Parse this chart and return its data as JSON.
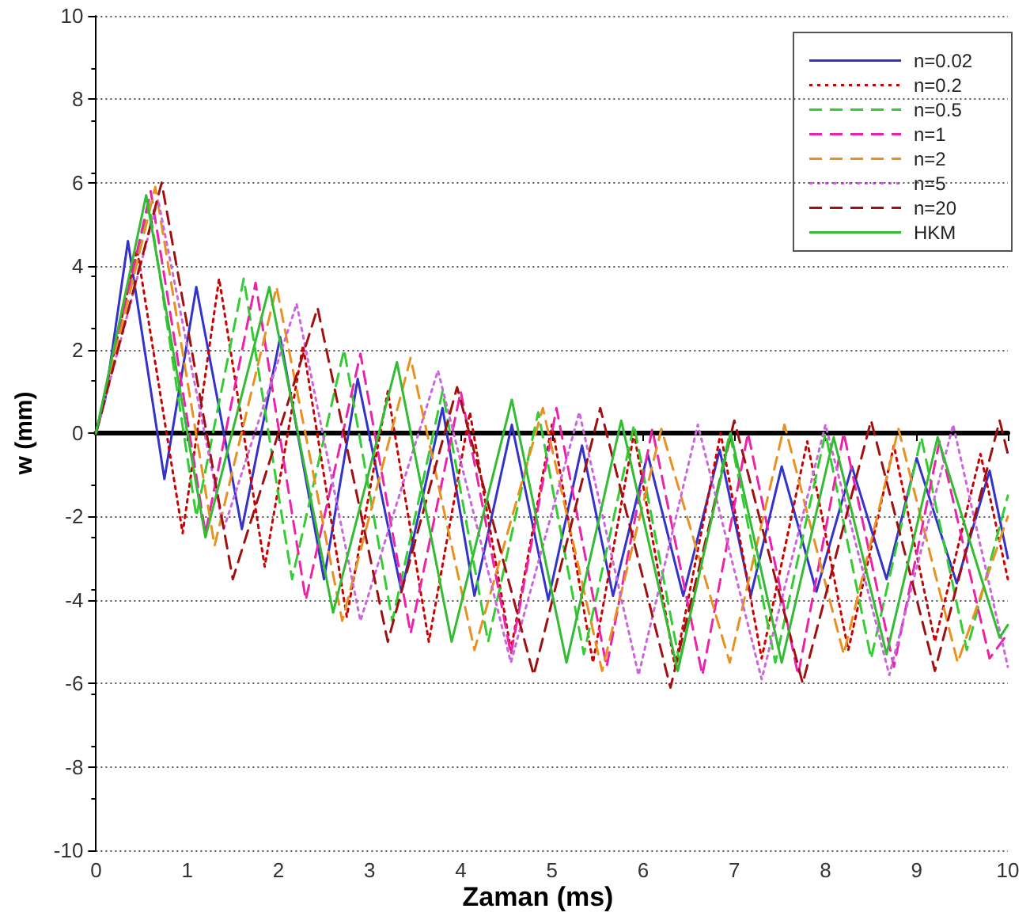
{
  "chart_data": {
    "type": "line",
    "xlabel": "Zaman (ms)",
    "ylabel": "w (mm)",
    "xlim": [
      0,
      10
    ],
    "xticks": [
      0,
      1,
      2,
      3,
      4,
      5,
      6,
      7,
      8,
      9,
      10
    ],
    "ylim": [
      -10,
      10
    ],
    "yticks": [
      -10,
      -8,
      -6,
      -4,
      -2,
      0,
      2,
      4,
      6,
      8,
      10
    ],
    "grid": "y",
    "legend": "top right",
    "marker": "none",
    "series": [
      {
        "name": "n=0.02",
        "color": "#3333cc",
        "line_style": "solid",
        "x": [
          0,
          0.1,
          0.35,
          0.75,
          1.1,
          1.6,
          2.02,
          2.5,
          2.87,
          3.35,
          3.8,
          4.15,
          4.56,
          4.96,
          5.33,
          5.67,
          6.05,
          6.44,
          6.84,
          7.18,
          7.52,
          7.9,
          8.29,
          8.67,
          9.0,
          9.44,
          9.8,
          10
        ],
        "values": [
          0,
          0.8,
          4.6,
          -1.1,
          3.5,
          -2.3,
          2.3,
          -3.5,
          1.3,
          -3.8,
          0.6,
          -3.9,
          0.2,
          -4.0,
          -0.3,
          -3.9,
          -0.5,
          -3.9,
          -0.4,
          -3.9,
          -0.8,
          -3.8,
          -0.8,
          -3.5,
          -0.6,
          -3.6,
          -0.9,
          -3.0
        ]
      },
      {
        "name": "n=0.2",
        "color": "#cc0000",
        "line_style": "dotted",
        "x": [
          0,
          0.45,
          0.95,
          1.35,
          1.85,
          2.27,
          2.75,
          3.2,
          3.65,
          4.1,
          4.55,
          5.0,
          5.45,
          5.9,
          6.35,
          6.85,
          7.3,
          7.8,
          8.25,
          8.75,
          9.2,
          9.7,
          10
        ],
        "values": [
          0,
          4.4,
          -2.4,
          3.7,
          -3.2,
          2.1,
          -4.4,
          1.0,
          -5.0,
          0.5,
          -5.2,
          0.2,
          -5.5,
          0,
          -5.6,
          0,
          -5.4,
          -0.2,
          -5.2,
          -0.3,
          -5.0,
          -0.5,
          -3.5
        ]
      },
      {
        "name": "n=0.5",
        "color": "#33cc33",
        "line_style": "dashed",
        "x": [
          0,
          0.58,
          1.1,
          1.62,
          2.15,
          2.72,
          3.25,
          3.8,
          4.3,
          4.85,
          5.35,
          5.9,
          6.4,
          6.95,
          7.45,
          8.0,
          8.5,
          9.05,
          9.55,
          10
        ],
        "values": [
          0,
          5.5,
          -2.0,
          3.7,
          -3.5,
          2.0,
          -4.5,
          1.0,
          -5.0,
          0.5,
          -5.3,
          0.2,
          -5.5,
          0,
          -5.5,
          0,
          -5.4,
          -0.1,
          -5.2,
          -1.5
        ]
      },
      {
        "name": "n=1",
        "color": "#ee22aa",
        "line_style": "dashed",
        "x": [
          0,
          0.6,
          1.2,
          1.75,
          2.3,
          2.9,
          3.45,
          4.0,
          4.55,
          5.05,
          5.6,
          6.1,
          6.65,
          7.15,
          7.7,
          8.2,
          8.75,
          9.25,
          9.8,
          10
        ],
        "values": [
          0,
          5.8,
          -2.4,
          3.6,
          -4.0,
          1.9,
          -4.8,
          1.0,
          -5.3,
          0.6,
          -5.6,
          0.1,
          -5.8,
          0,
          -5.8,
          0,
          -5.6,
          -0.2,
          -5.4,
          -4.8
        ]
      },
      {
        "name": "n=2",
        "color": "#e89020",
        "line_style": "dashed",
        "x": [
          0,
          0.65,
          1.3,
          1.98,
          2.7,
          3.45,
          4.15,
          4.9,
          5.55,
          6.2,
          6.95,
          7.55,
          8.2,
          8.8,
          9.45,
          10
        ],
        "values": [
          0,
          5.9,
          -2.7,
          3.5,
          -4.5,
          1.8,
          -5.2,
          0.6,
          -5.7,
          0.1,
          -5.5,
          0.2,
          -5.3,
          0.1,
          -5.5,
          -2.0
        ]
      },
      {
        "name": "n=5",
        "color": "#cc66dd",
        "line_style": "dotted",
        "x": [
          0,
          0.68,
          1.4,
          2.2,
          2.9,
          3.75,
          4.55,
          5.3,
          5.95,
          6.6,
          7.3,
          8.0,
          8.7,
          9.4,
          10
        ],
        "values": [
          0,
          5.6,
          -2.3,
          3.1,
          -4.5,
          1.5,
          -5.5,
          0.5,
          -5.8,
          0.2,
          -5.9,
          0.2,
          -5.8,
          0.2,
          -5.6
        ]
      },
      {
        "name": "n=20",
        "color": "#a01010",
        "line_style": "dashed",
        "x": [
          0,
          0.72,
          1.5,
          2.43,
          3.2,
          3.96,
          4.8,
          5.53,
          6.3,
          7.0,
          7.75,
          8.5,
          9.2,
          9.91,
          10
        ],
        "values": [
          0,
          6.0,
          -3.5,
          3.0,
          -5.0,
          1.1,
          -5.8,
          0.6,
          -6.1,
          0.3,
          -6.0,
          0.3,
          -5.7,
          0.3,
          -0.5
        ]
      },
      {
        "name": "HKM",
        "color": "#33bb33",
        "line_style": "solid",
        "x": [
          0,
          0.55,
          1.2,
          1.9,
          2.6,
          3.3,
          3.9,
          4.56,
          5.16,
          5.76,
          6.38,
          6.96,
          7.52,
          8.09,
          8.67,
          9.23,
          9.91,
          10
        ],
        "values": [
          0,
          5.7,
          -2.5,
          3.5,
          -4.3,
          1.7,
          -5.0,
          0.8,
          -5.5,
          0.3,
          -5.7,
          0,
          -5.5,
          -0.1,
          -5.3,
          -0.1,
          -4.9,
          -4.6
        ]
      }
    ]
  }
}
